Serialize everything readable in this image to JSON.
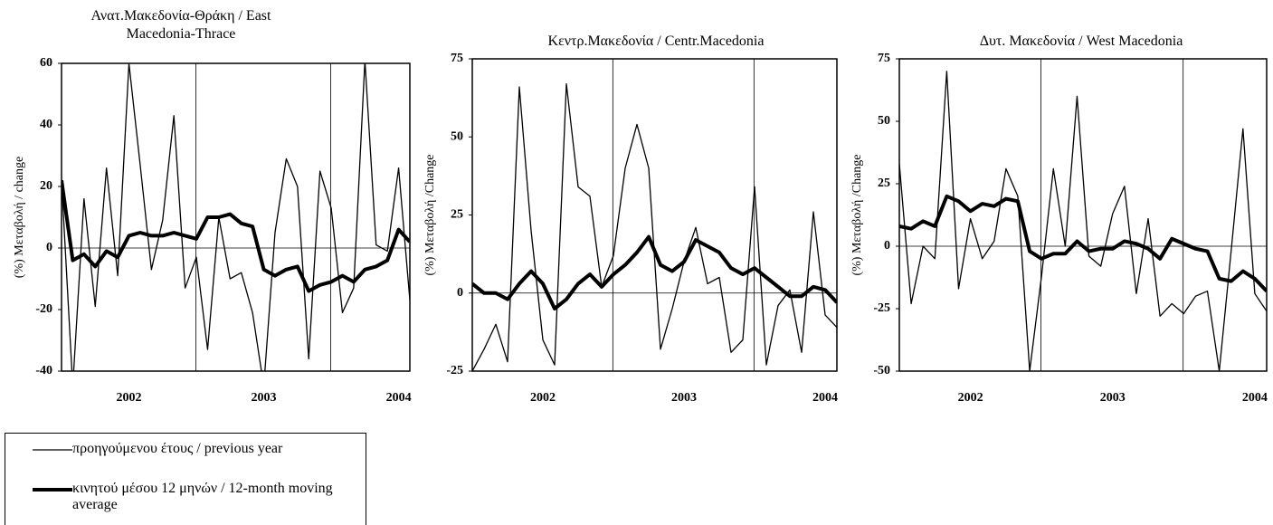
{
  "chart_data": [
    {
      "type": "line",
      "title": "Ανατ.Μακεδονία-Θράκη / East Macedonia-Thrace",
      "ylabel": "(%) Μεταβολή / change",
      "categories": [
        null,
        null,
        null,
        null,
        null,
        null,
        "2002",
        null,
        null,
        null,
        null,
        null,
        null,
        null,
        null,
        null,
        null,
        null,
        "2003",
        null,
        null,
        null,
        null,
        null,
        null,
        null,
        null,
        null,
        null,
        null,
        "2004",
        null
      ],
      "ylim": [
        -40,
        60
      ],
      "yticks": [
        -40,
        -20,
        0,
        20,
        40,
        60
      ],
      "series": [
        {
          "name": "προηγούμενου έτους / previous year",
          "color": "#000000",
          "values": [
            22,
            -45,
            16,
            -19,
            26,
            -9,
            60,
            27,
            -7,
            9,
            43,
            -13,
            -3,
            -33,
            10,
            -10,
            -8,
            -21,
            -45,
            5,
            29,
            20,
            -36,
            25,
            13,
            -21,
            -13,
            61,
            1,
            -1,
            26,
            -17
          ]
        },
        {
          "name": "κινητού μέσου 12 μηνών / 12-month moving average",
          "color": "#000000",
          "values": [
            22,
            -4,
            -2,
            -6,
            -1,
            -3,
            4,
            5,
            4,
            4,
            5,
            4,
            3,
            10,
            10,
            11,
            8,
            7,
            -7,
            -9,
            -7,
            -6,
            -14,
            -12,
            -11,
            -9,
            -11,
            -7,
            -6,
            -4,
            6,
            2
          ]
        }
      ]
    },
    {
      "type": "line",
      "title": "Κεντρ.Μακεδονία / Centr.Macedonia",
      "ylabel": "(%) Μεταβολή /Change",
      "categories": [
        null,
        null,
        null,
        null,
        null,
        null,
        "2002",
        null,
        null,
        null,
        null,
        null,
        null,
        null,
        null,
        null,
        null,
        null,
        "2003",
        null,
        null,
        null,
        null,
        null,
        null,
        null,
        null,
        null,
        null,
        null,
        "2004",
        null
      ],
      "ylim": [
        -25,
        75
      ],
      "yticks": [
        -25,
        0,
        25,
        50,
        75
      ],
      "series": [
        {
          "name": "προηγούμενου έτους / previous year",
          "color": "#000000",
          "values": [
            -25,
            -18,
            -10,
            -22,
            66,
            20,
            -15,
            -23,
            67,
            34,
            31,
            2,
            12,
            40,
            54,
            40,
            -18,
            -5,
            10,
            21,
            3,
            5,
            -19,
            -15,
            34,
            -23,
            -4,
            1,
            -19,
            26,
            -7,
            -11
          ]
        },
        {
          "name": "κινητού μέσου 12 μηνών / 12-month moving average",
          "color": "#000000",
          "values": [
            3,
            0,
            0,
            -2,
            3,
            7,
            3,
            -5,
            -2,
            3,
            6,
            2,
            6,
            9,
            13,
            18,
            9,
            7,
            10,
            17,
            15,
            13,
            8,
            6,
            8,
            5,
            2,
            -1,
            -1,
            2,
            1,
            -3
          ]
        }
      ]
    },
    {
      "type": "line",
      "title": "Δυτ. Μακεδονία / West Macedonia",
      "ylabel": "(%) Μεταβολή /Change",
      "categories": [
        null,
        null,
        null,
        null,
        null,
        null,
        "2002",
        null,
        null,
        null,
        null,
        null,
        null,
        null,
        null,
        null,
        null,
        null,
        "2003",
        null,
        null,
        null,
        null,
        null,
        null,
        null,
        null,
        null,
        null,
        null,
        "2004",
        null
      ],
      "ylim": [
        -50,
        75
      ],
      "yticks": [
        -50,
        -25,
        0,
        25,
        50,
        75
      ],
      "series": [
        {
          "name": "προηγούμενου έτους / previous year",
          "color": "#000000",
          "values": [
            33,
            -23,
            0,
            -5,
            70,
            -17,
            11,
            -5,
            2,
            31,
            20,
            -50,
            -12,
            31,
            0,
            60,
            -4,
            -8,
            13,
            24,
            -19,
            11,
            -28,
            -23,
            -27,
            -20,
            -18,
            -50,
            -2,
            47,
            -19,
            -26
          ]
        },
        {
          "name": "κινητού μέσου 12 μηνών / 12-month moving average",
          "color": "#000000",
          "values": [
            8,
            7,
            10,
            8,
            20,
            18,
            14,
            17,
            16,
            19,
            18,
            -2,
            -5,
            -3,
            -3,
            2,
            -2,
            -1,
            -1,
            2,
            1,
            -1,
            -5,
            3,
            1,
            -1,
            -2,
            -13,
            -14,
            -10,
            -13,
            -18
          ]
        }
      ]
    }
  ]
}
